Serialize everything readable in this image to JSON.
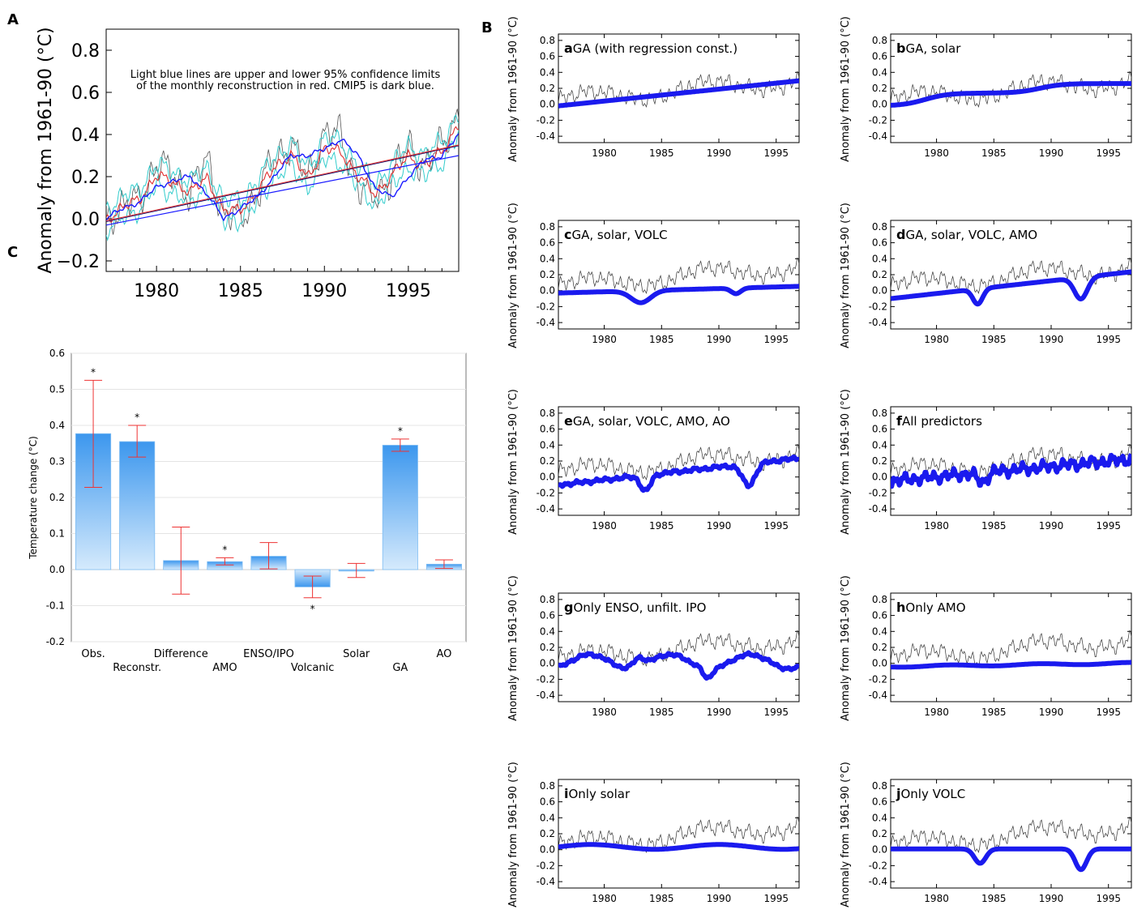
{
  "panel_labels": {
    "A": "A",
    "B": "B",
    "C": "C"
  },
  "chart_data": [
    {
      "id": "A",
      "type": "line",
      "ylabel": "Anomaly from 1961-90 (°C)",
      "xlim": [
        1977,
        1998
      ],
      "ylim": [
        -0.25,
        0.9
      ],
      "xticks": [
        1980,
        1985,
        1990,
        1995
      ],
      "yticks": [
        -0.2,
        0.0,
        0.2,
        0.4,
        0.6,
        0.8
      ],
      "ytick_labels": [
        "−0.2",
        "0.0",
        "0.2",
        "0.4",
        "0.6",
        "0.8"
      ],
      "annotation": [
        "Light blue lines are upper and lower 95% confidence limits",
        "of the monthly reconstruction in red. CMIP5 is dark blue."
      ],
      "colors": {
        "observed": "#555555",
        "reconstruction": "#e03030",
        "confidence": "#33cccc",
        "cmip5": "#1a1aff",
        "trend_dark": "#000066"
      },
      "series": [
        {
          "key": "observed",
          "x": [
            1977,
            1978,
            1979,
            1980,
            1981,
            1982,
            1983,
            1984,
            1985,
            1986,
            1987,
            1988,
            1989,
            1990,
            1991,
            1992,
            1993,
            1994,
            1995,
            1996,
            1997,
            1998
          ],
          "values": [
            0.0,
            0.05,
            0.1,
            0.25,
            0.22,
            0.1,
            0.3,
            0.0,
            0.02,
            0.1,
            0.3,
            0.35,
            0.2,
            0.4,
            0.4,
            0.15,
            0.1,
            0.2,
            0.35,
            0.25,
            0.35,
            0.5
          ]
        },
        {
          "key": "reconstruction",
          "x": [
            1977,
            1978,
            1979,
            1980,
            1981,
            1982,
            1983,
            1984,
            1985,
            1986,
            1987,
            1988,
            1989,
            1990,
            1991,
            1992,
            1993,
            1994,
            1995,
            1996,
            1997,
            1998
          ],
          "values": [
            0.0,
            0.05,
            0.1,
            0.2,
            0.18,
            0.12,
            0.2,
            0.03,
            0.05,
            0.12,
            0.25,
            0.3,
            0.2,
            0.33,
            0.32,
            0.2,
            0.12,
            0.2,
            0.3,
            0.25,
            0.32,
            0.45
          ]
        },
        {
          "key": "cmip5",
          "x": [
            1977,
            1978,
            1979,
            1980,
            1981,
            1982,
            1983,
            1984,
            1985,
            1986,
            1987,
            1988,
            1989,
            1990,
            1991,
            1992,
            1993,
            1994,
            1995,
            1996,
            1997,
            1998
          ],
          "values": [
            0.0,
            0.05,
            0.08,
            0.15,
            0.18,
            0.2,
            0.12,
            0.0,
            0.05,
            0.1,
            0.2,
            0.3,
            0.3,
            0.33,
            0.38,
            0.3,
            0.15,
            0.1,
            0.2,
            0.28,
            0.3,
            0.4
          ]
        }
      ],
      "trends": [
        {
          "key": "trend_red",
          "x": [
            1977,
            1998
          ],
          "values": [
            -0.01,
            0.35
          ]
        },
        {
          "key": "trend_blue",
          "x": [
            1977,
            1998
          ],
          "values": [
            -0.03,
            0.3
          ]
        }
      ]
    },
    {
      "id": "C",
      "type": "bar",
      "ylabel": "Temperature change (°C)",
      "ylim": [
        -0.2,
        0.6
      ],
      "yticks": [
        -0.2,
        -0.1,
        0.0,
        0.1,
        0.2,
        0.3,
        0.4,
        0.5,
        0.6
      ],
      "categories": [
        "Obs.",
        "Reconstr.",
        "Difference",
        "AMO",
        "ENSO/IPO",
        "Volcanic",
        "Solar",
        "GA",
        "AO"
      ],
      "values": [
        0.377,
        0.355,
        0.025,
        0.022,
        0.037,
        -0.048,
        -0.004,
        0.345,
        0.015
      ],
      "err_low": [
        0.228,
        0.312,
        -0.068,
        0.013,
        0.002,
        -0.078,
        -0.022,
        0.328,
        0.003
      ],
      "err_high": [
        0.525,
        0.4,
        0.118,
        0.033,
        0.075,
        -0.018,
        0.017,
        0.362,
        0.027
      ],
      "significant": [
        "*",
        "*",
        "",
        "*",
        "",
        "*",
        "",
        "*",
        ""
      ],
      "colors": {
        "bar_top": "#3c97ee",
        "bar_bottom": "#d5eafc",
        "error": "#ee3333"
      }
    }
  ],
  "panel_B": {
    "ylabel": "Anomaly from 1961-90 (°C)",
    "xticks": [
      1980,
      1985,
      1990,
      1995
    ],
    "yticks": [
      -0.4,
      -0.2,
      0.0,
      0.2,
      0.4,
      0.6,
      0.8
    ],
    "ytick_labels": [
      "-0.4",
      "-0.2",
      "0.0",
      "0.2",
      "0.4",
      "0.6",
      "0.8"
    ],
    "xlim": [
      1976,
      1997
    ],
    "ylim": [
      -0.48,
      0.88
    ],
    "subplots": [
      {
        "letter": "a",
        "title": "GA (with regression const.)"
      },
      {
        "letter": "b",
        "title": "GA, solar"
      },
      {
        "letter": "c",
        "title": "GA, solar, VOLC"
      },
      {
        "letter": "d",
        "title": "GA, solar, VOLC, AMO"
      },
      {
        "letter": "e",
        "title": "GA, solar, VOLC, AMO, AO"
      },
      {
        "letter": "f",
        "title": "All predictors"
      },
      {
        "letter": "g",
        "title": "Only ENSO, unfilt. IPO"
      },
      {
        "letter": "h",
        "title": "Only AMO"
      },
      {
        "letter": "i",
        "title": "Only solar"
      },
      {
        "letter": "j",
        "title": "Only VOLC"
      }
    ]
  }
}
